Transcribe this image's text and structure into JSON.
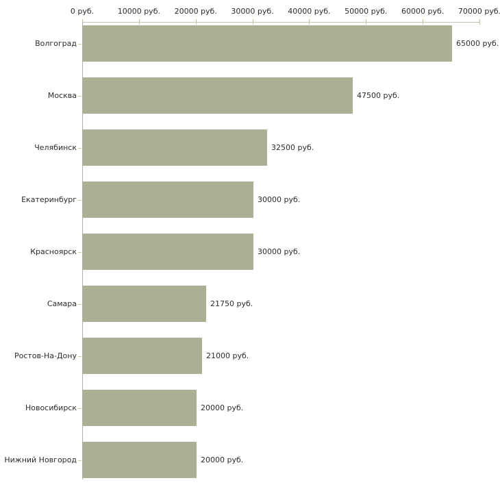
{
  "chart_data": {
    "type": "bar",
    "orientation": "horizontal",
    "title": "",
    "categories": [
      "Волгоград",
      "Москва",
      "Челябинск",
      "Екатеринбург",
      "Красноярск",
      "Самара",
      "Ростов-На-Дону",
      "Новосибирск",
      "Нижний Новгород"
    ],
    "values": [
      65000,
      47500,
      32500,
      30000,
      30000,
      21750,
      21000,
      20000,
      20000
    ],
    "value_labels": [
      "65000 руб.",
      "47500 руб.",
      "32500 руб.",
      "30000 руб.",
      "30000 руб.",
      "21750 руб.",
      "21000 руб.",
      "20000 руб.",
      "20000 руб."
    ],
    "x_axis": {
      "position": "top",
      "min": 0,
      "max": 70000,
      "tick_interval": 10000,
      "tick_labels": [
        "0 руб.",
        "10000 руб.",
        "20000 руб.",
        "30000 руб.",
        "40000 руб.",
        "50000 руб.",
        "60000 руб.",
        "70000 руб."
      ]
    },
    "unit": "руб.",
    "grid": false,
    "legend": false,
    "colors": {
      "bar": "#abb095",
      "background": "#ffffff",
      "x_axis_line": "#c2c2b4",
      "y_axis_line": "#aeaea6",
      "tick": "#c6c69e",
      "text": "#2b2b2b"
    }
  }
}
